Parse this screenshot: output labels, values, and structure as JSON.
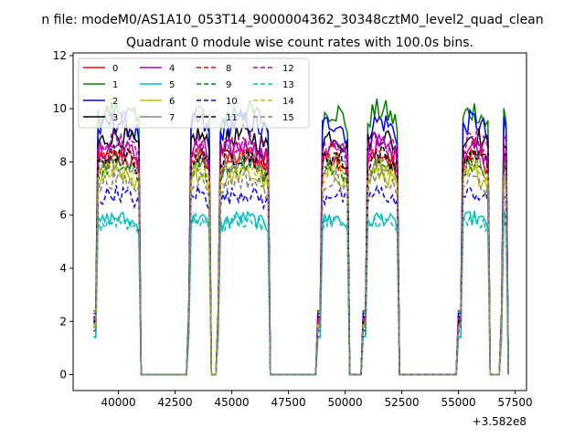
{
  "suptitle": "n file: modeM0/AS1A10_053T14_9000004362_30348cztM0_level2_quad_clean",
  "chart_data": {
    "type": "line",
    "title": "Quadrant 0 module wise count rates with 100.0s bins.",
    "xlabel": "",
    "ylabel": "",
    "x_offset_label": "+3.582e8",
    "xlim": [
      38000,
      58000
    ],
    "ylim": [
      -0.6,
      12.1
    ],
    "xticks": [
      40000,
      42500,
      45000,
      47500,
      50000,
      52500,
      55000,
      57500
    ],
    "xtick_labels": [
      "40000",
      "42500",
      "45000",
      "47500",
      "50000",
      "52500",
      "55000",
      "57500"
    ],
    "yticks": [
      0,
      2,
      4,
      6,
      8,
      10,
      12
    ],
    "ytick_labels": [
      "0",
      "2",
      "4",
      "6",
      "8",
      "10",
      "12"
    ],
    "grid": false,
    "legend": {
      "placement": "top-left",
      "columns": 4
    },
    "segments": [
      [
        38900,
        40900
      ],
      [
        43050,
        44000
      ],
      [
        44350,
        46600
      ],
      [
        48800,
        50100
      ],
      [
        50800,
        52300
      ],
      [
        55000,
        56300
      ],
      [
        56850,
        57150
      ]
    ],
    "series": [
      {
        "name": "0",
        "color": "#ff0000",
        "dash": "solid",
        "level": 7.9
      },
      {
        "name": "1",
        "color": "#008000",
        "dash": "solid",
        "level": 9.6
      },
      {
        "name": "2",
        "color": "#0000ff",
        "dash": "solid",
        "level": 9.2
      },
      {
        "name": "3",
        "color": "#000000",
        "dash": "solid",
        "level": 8.7
      },
      {
        "name": "4",
        "color": "#bf00bf",
        "dash": "solid",
        "level": 8.3
      },
      {
        "name": "5",
        "color": "#00bfbf",
        "dash": "solid",
        "level": 5.7
      },
      {
        "name": "6",
        "color": "#bfbf00",
        "dash": "solid",
        "level": 7.3
      },
      {
        "name": "7",
        "color": "#808080",
        "dash": "solid",
        "level": 7.8
      },
      {
        "name": "8",
        "color": "#ff0000",
        "dash": "dashed",
        "level": 8.1
      },
      {
        "name": "9",
        "color": "#008000",
        "dash": "dashed",
        "level": 7.6
      },
      {
        "name": "10",
        "color": "#0000ff",
        "dash": "dashed",
        "level": 6.6
      },
      {
        "name": "11",
        "color": "#000000",
        "dash": "dashed",
        "level": 8.0
      },
      {
        "name": "12",
        "color": "#bf00bf",
        "dash": "dashed",
        "level": 8.5
      },
      {
        "name": "13",
        "color": "#00bfbf",
        "dash": "dashed",
        "level": 5.6
      },
      {
        "name": "14",
        "color": "#bfbf00",
        "dash": "dashed",
        "level": 7.5
      },
      {
        "name": "15",
        "color": "#808080",
        "dash": "dashed",
        "level": 7.1
      }
    ]
  }
}
